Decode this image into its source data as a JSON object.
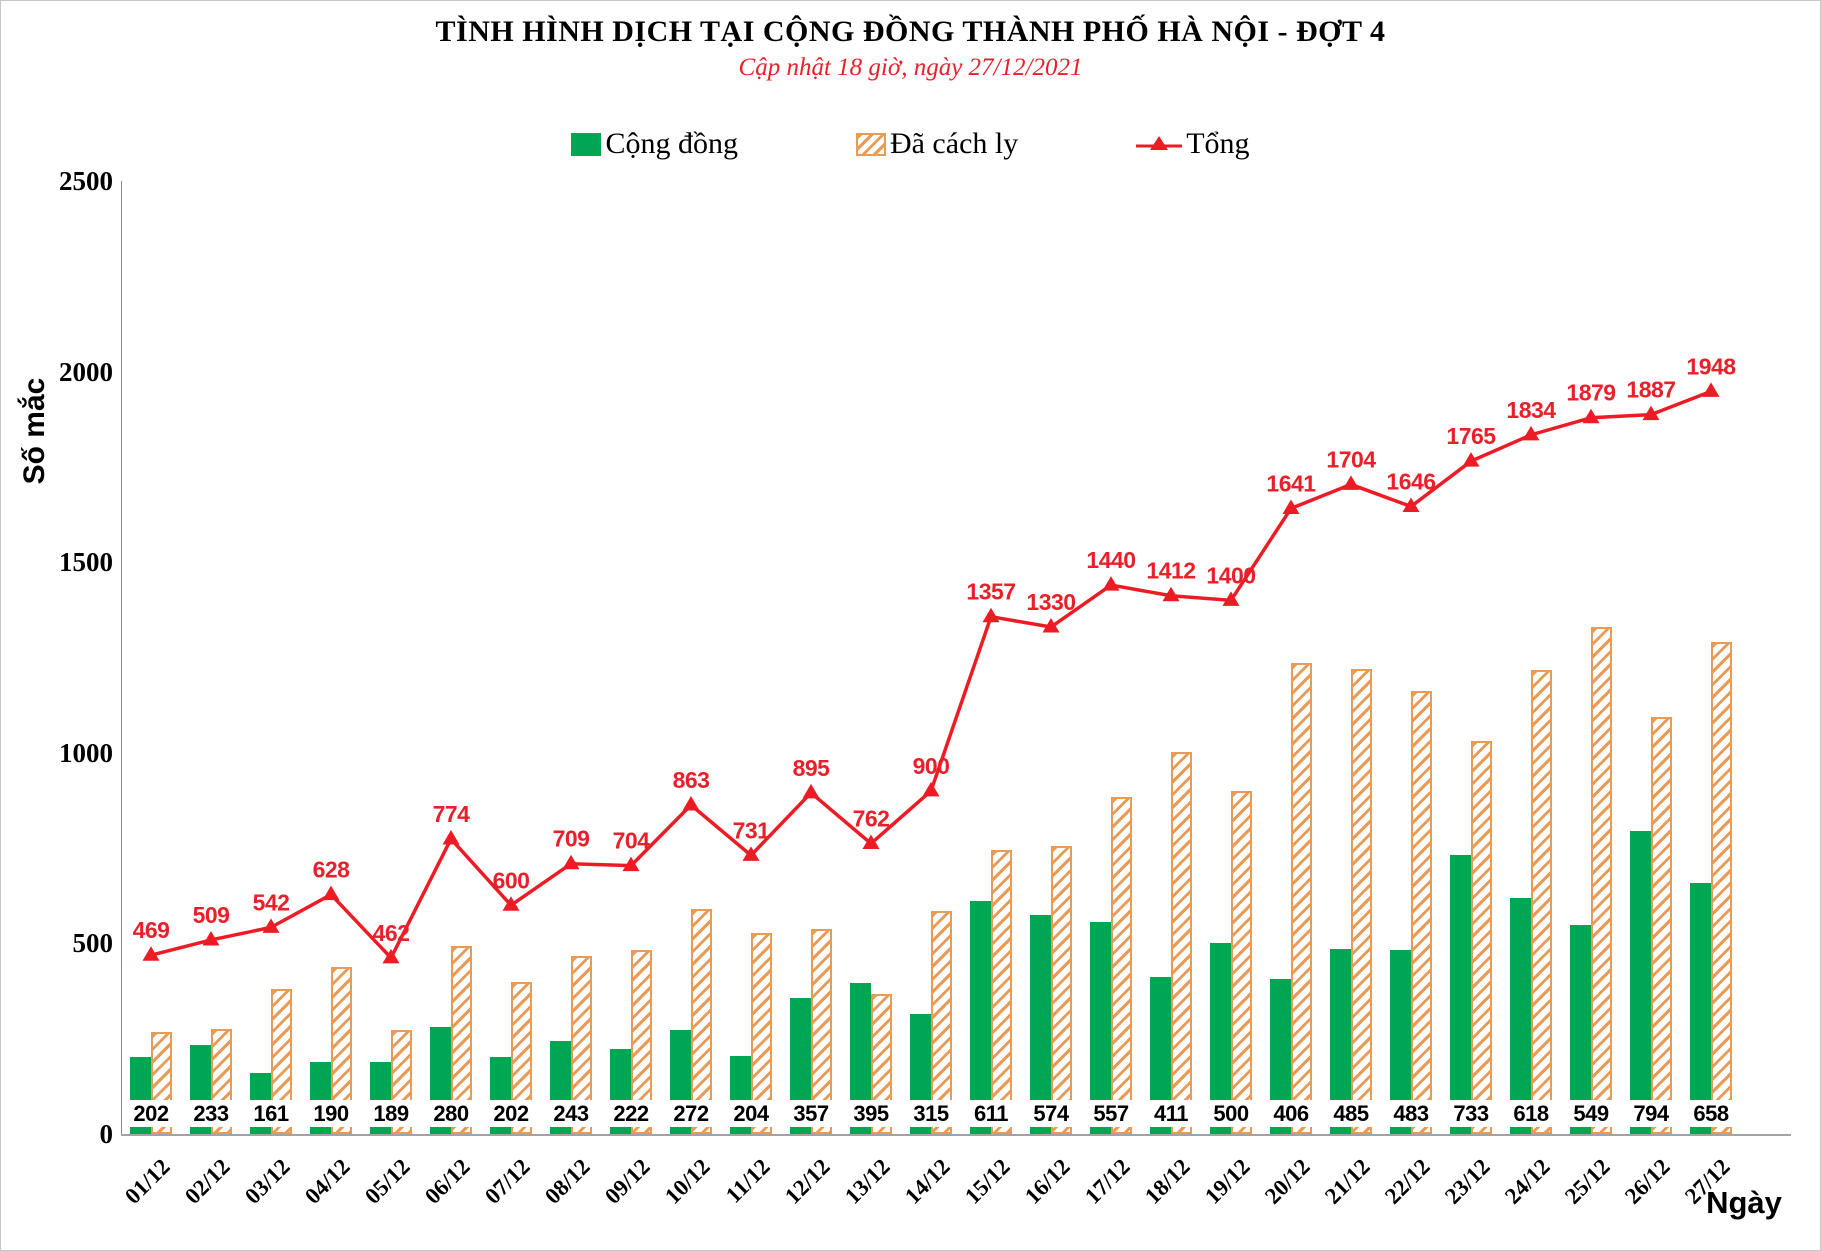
{
  "title": "TÌNH HÌNH DỊCH TẠI CỘNG ĐỒNG THÀNH PHỐ HÀ NỘI - ĐỢT 4",
  "subtitle": "Cập nhật 18 giờ, ngày 27/12/2021",
  "axes": {
    "y_label": "Số mắc",
    "x_label": "Ngày",
    "y_ticks": [
      0,
      500,
      1000,
      1500,
      2000,
      2500
    ],
    "y_max": 2500
  },
  "legend": [
    {
      "label": "Cộng đồng",
      "type": "bar-solid",
      "color": "#00a651"
    },
    {
      "label": "Đã cách ly",
      "type": "bar-hatched",
      "color": "#e89b57"
    },
    {
      "label": "Tổng",
      "type": "line-marker",
      "color": "#ed1c24"
    }
  ],
  "colors": {
    "community_green": "#00a651",
    "quarantine_orange": "#e89b57",
    "total_red": "#ed1c24",
    "label_red": "#e8202a",
    "axis_gray": "#8c8c8c"
  },
  "chart_data": {
    "type": "bar+line",
    "title": "TÌNH HÌNH DỊCH TẠI CỘNG ĐỒNG THÀNH PHỐ HÀ NỘI - ĐỢT 4",
    "subtitle": "Cập nhật 18 giờ, ngày 27/12/2021",
    "xlabel": "Ngày",
    "ylabel": "Số mắc",
    "ylim": [
      0,
      2500
    ],
    "grid": false,
    "legend_position": "top",
    "categories": [
      "01/12",
      "02/12",
      "03/12",
      "04/12",
      "05/12",
      "06/12",
      "07/12",
      "08/12",
      "09/12",
      "10/12",
      "11/12",
      "12/12",
      "13/12",
      "14/12",
      "15/12",
      "16/12",
      "17/12",
      "18/12",
      "19/12",
      "20/12",
      "21/12",
      "22/12",
      "23/12",
      "24/12",
      "25/12",
      "26/12",
      "27/12"
    ],
    "series": [
      {
        "name": "Cộng đồng",
        "type": "bar",
        "style": "solid",
        "color": "#00a651",
        "labeled": true,
        "values": [
          202,
          233,
          161,
          190,
          189,
          280,
          202,
          243,
          222,
          272,
          204,
          357,
          395,
          315,
          611,
          574,
          557,
          411,
          500,
          406,
          485,
          483,
          733,
          618,
          549,
          794,
          658
        ]
      },
      {
        "name": "Đã cách ly",
        "type": "bar",
        "style": "hatched",
        "color": "#e89b57",
        "labeled": false,
        "values": [
          267,
          276,
          381,
          438,
          273,
          494,
          398,
          466,
          482,
          591,
          527,
          538,
          367,
          585,
          746,
          756,
          883,
          1001,
          900,
          1235,
          1219,
          1163,
          1032,
          1216,
          1330,
          1093,
          1290
        ]
      },
      {
        "name": "Tổng",
        "type": "line",
        "marker": "triangle",
        "color": "#ed1c24",
        "labeled": true,
        "values": [
          469,
          509,
          542,
          628,
          462,
          774,
          600,
          709,
          704,
          863,
          731,
          895,
          762,
          900,
          1357,
          1330,
          1440,
          1412,
          1400,
          1641,
          1704,
          1646,
          1765,
          1834,
          1879,
          1887,
          1948
        ]
      }
    ]
  }
}
